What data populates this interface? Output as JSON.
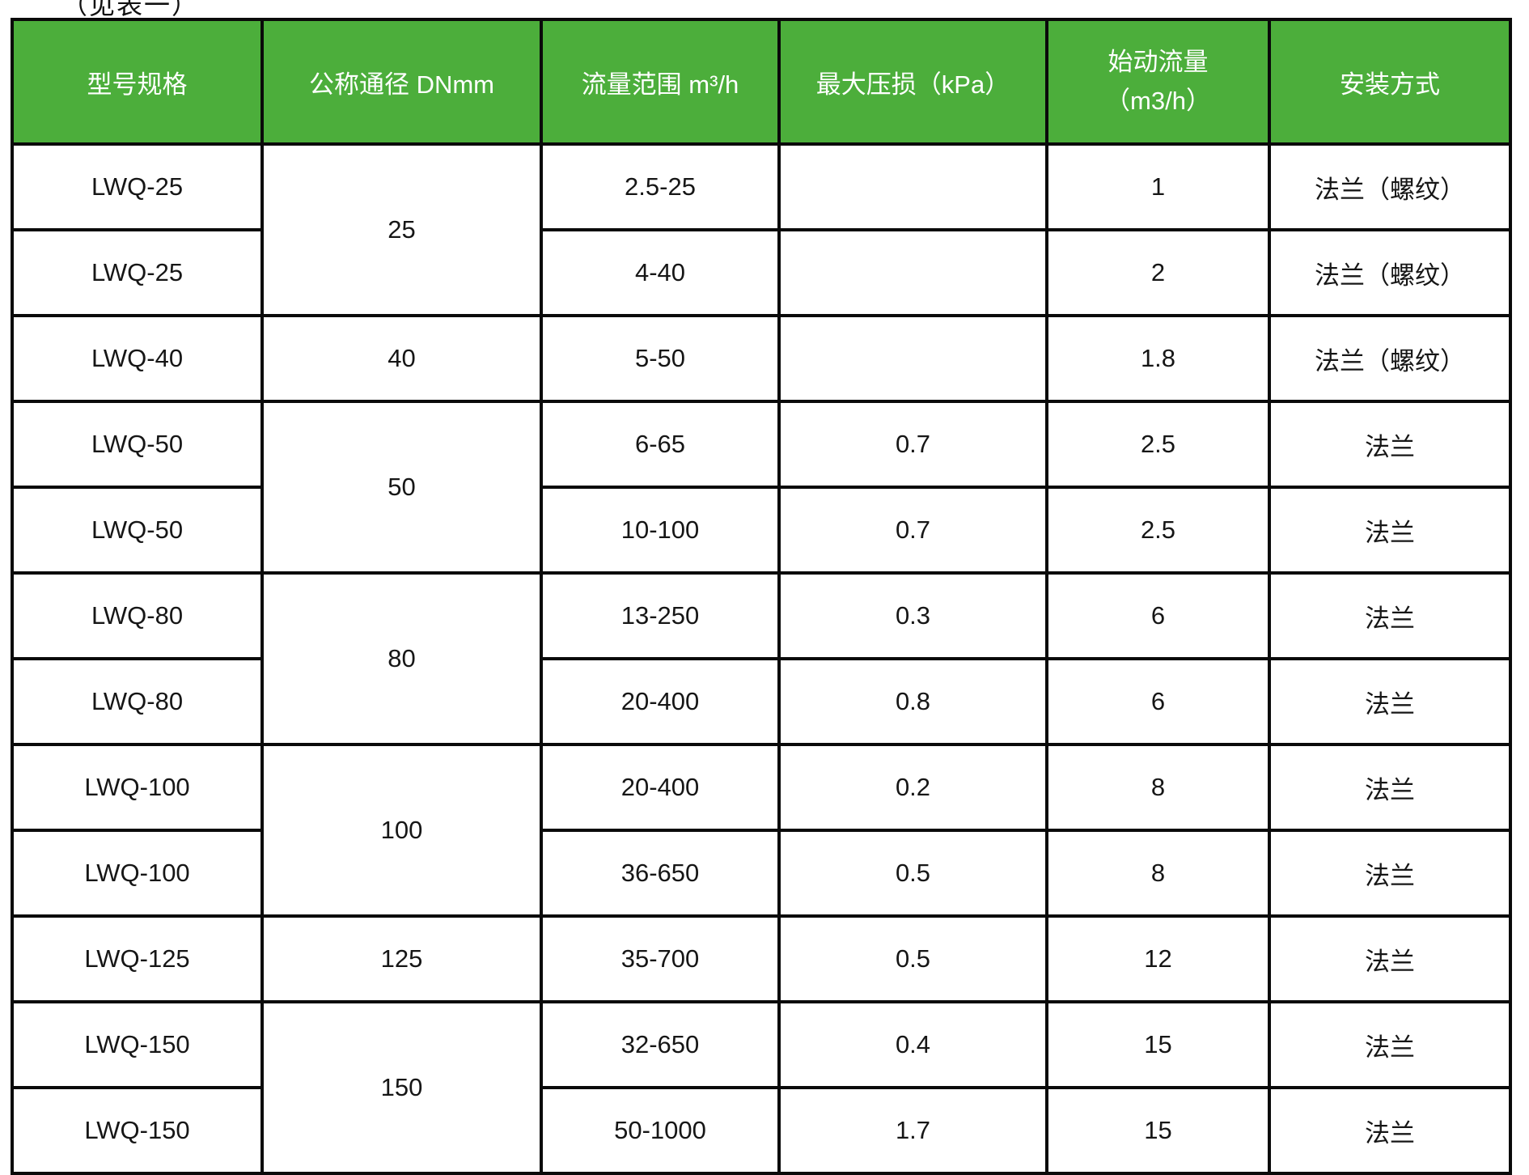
{
  "caption": "（见表一）",
  "colors": {
    "header_bg": "#4cae3b",
    "header_text": "#ffffff",
    "border": "#0a0a0a",
    "body_text": "#161616",
    "page_bg": "#ffffff"
  },
  "table": {
    "headers": {
      "model": "型号规格",
      "dn": "公称通径 DNmm",
      "range": "流量范围 m³/h",
      "loss": "最大压损（kPa）",
      "start_line1": "始动流量",
      "start_line2": "（m3/h）",
      "install": "安装方式"
    },
    "rows": [
      {
        "model": "LWQ-25",
        "dn": "25",
        "range": "2.5-25",
        "loss": "",
        "start": "1",
        "install": "法兰（螺纹）"
      },
      {
        "model": "LWQ-25",
        "range": "4-40",
        "loss": "",
        "start": "2",
        "install": "法兰（螺纹）"
      },
      {
        "model": "LWQ-40",
        "dn": "40",
        "range": "5-50",
        "loss": "",
        "start": "1.8",
        "install": "法兰（螺纹）"
      },
      {
        "model": "LWQ-50",
        "dn": "50",
        "range": "6-65",
        "loss": "0.7",
        "start": "2.5",
        "install": "法兰"
      },
      {
        "model": "LWQ-50",
        "range": "10-100",
        "loss": "0.7",
        "start": "2.5",
        "install": "法兰"
      },
      {
        "model": "LWQ-80",
        "dn": "80",
        "range": "13-250",
        "loss": "0.3",
        "start": "6",
        "install": "法兰"
      },
      {
        "model": "LWQ-80",
        "range": "20-400",
        "loss": "0.8",
        "start": "6",
        "install": "法兰"
      },
      {
        "model": "LWQ-100",
        "dn": "100",
        "range": "20-400",
        "loss": "0.2",
        "start": "8",
        "install": "法兰"
      },
      {
        "model": "LWQ-100",
        "range": "36-650",
        "loss": "0.5",
        "start": "8",
        "install": "法兰"
      },
      {
        "model": "LWQ-125",
        "dn": "125",
        "range": "35-700",
        "loss": "0.5",
        "start": "12",
        "install": "法兰"
      },
      {
        "model": "LWQ-150",
        "dn": "150",
        "range": "32-650",
        "loss": "0.4",
        "start": "15",
        "install": "法兰"
      },
      {
        "model": "LWQ-150",
        "range": "50-1000",
        "loss": "1.7",
        "start": "15",
        "install": "法兰"
      }
    ]
  }
}
